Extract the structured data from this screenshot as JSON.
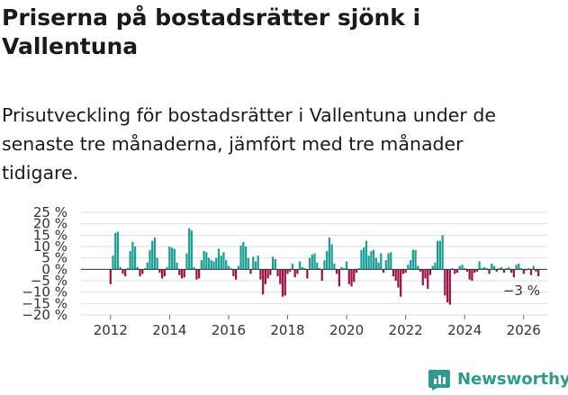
{
  "title": "Priserna på bostadsrätter sjönk i Vallentuna",
  "subtitle": "Prisutveckling för bostadsrätter i Vallentuna under de senaste tre månaderna, jämfört med tre månader tidigare.",
  "brand": "Newsworthy",
  "colors": {
    "positive": "#1a9e96",
    "negative": "#9c1447",
    "grid": "#dddddd",
    "zero": "#333333",
    "brand": "#2e9a8f"
  },
  "chart_data": {
    "type": "bar",
    "title": "Prisutveckling för bostadsrätter i Vallentuna",
    "xlabel": "",
    "ylabel": "",
    "ylim": [
      -20,
      25
    ],
    "yticks": [
      25,
      20,
      15,
      10,
      5,
      0,
      -5,
      -10,
      -15,
      -20
    ],
    "ytick_labels": [
      "25 %",
      "20 %",
      "15 %",
      "10 %",
      "5 %",
      "0 %",
      "−5 %",
      "−10 %",
      "−15 %",
      "−20 %"
    ],
    "xlim": [
      2011.0,
      2026.8
    ],
    "xticks": [
      2012,
      2014,
      2016,
      2018,
      2020,
      2022,
      2024,
      2026
    ],
    "xtick_labels": [
      "2012",
      "2014",
      "2016",
      "2018",
      "2020",
      "2022",
      "2024",
      "2026"
    ],
    "start": [
      2012,
      1
    ],
    "end_label": "−3 %",
    "values": [
      -6.5,
      6,
      16,
      16.5,
      1,
      -2,
      -3,
      0.5,
      8,
      12,
      10,
      1,
      -3,
      -2,
      0.5,
      3,
      8.5,
      12.5,
      14,
      5,
      -1.5,
      -4,
      -3,
      1,
      10,
      9.5,
      9,
      3,
      -2.5,
      -4,
      -3.5,
      7,
      18,
      17,
      1,
      -4.5,
      -4,
      4,
      8,
      7.5,
      5,
      4,
      3.5,
      5,
      9,
      6,
      7.5,
      4,
      1.5,
      0.5,
      -3,
      -4.5,
      1.5,
      10.5,
      12,
      10,
      5,
      -2,
      5.5,
      3.5,
      6,
      -4.5,
      -11,
      -6.5,
      -4,
      -2.5,
      5.5,
      4.5,
      -3,
      -6.5,
      -12,
      -11.5,
      -2,
      -1,
      2.5,
      -3.5,
      -2,
      3.5,
      1,
      0.5,
      -4,
      5,
      6.5,
      7,
      3,
      0.5,
      -5,
      4,
      8,
      14,
      11,
      2.5,
      -2,
      -7.5,
      1,
      0.5,
      3.5,
      -6.5,
      -7.5,
      -5.5,
      -1.5,
      0.5,
      8.5,
      9.5,
      12.5,
      6,
      8,
      8.5,
      5,
      3,
      7,
      -1.5,
      4,
      7,
      7.5,
      -3,
      -5,
      -8,
      -12,
      -2,
      -1.5,
      2,
      4,
      8.5,
      8.5,
      1.5,
      -1,
      -7,
      -4,
      -8.5,
      -2.5,
      1.5,
      3,
      12.5,
      12.5,
      15,
      -11.5,
      -14.5,
      -15.5,
      0.5,
      -2,
      -1.5,
      1.5,
      2,
      0.5,
      -1,
      -4.5,
      -5,
      -1.5,
      -1,
      3.5,
      0.5,
      1,
      0.5,
      -2,
      2.5,
      1.5,
      -1,
      0.5,
      1,
      -1.5,
      0.5,
      1,
      -1.5,
      -3.5,
      2,
      2.5,
      0.5,
      -2,
      -0.5,
      0.5,
      -2.5,
      1.5,
      -1,
      -3
    ]
  }
}
